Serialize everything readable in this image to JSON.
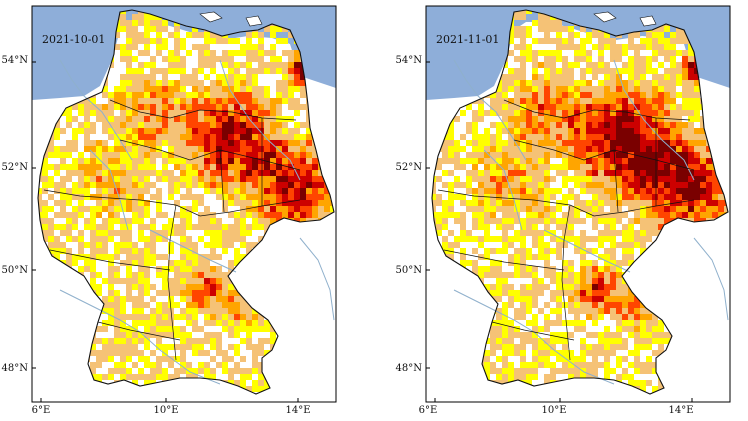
{
  "colors": {
    "sea": "#8eaed9",
    "land": "#ffffff",
    "border": "#111111",
    "river": "#8fb0cc",
    "frame": "#000000",
    "classes": [
      "#ffff00",
      "#f5c276",
      "#ffa500",
      "#ff4500",
      "#cc0000",
      "#7a0000"
    ]
  },
  "maps": [
    {
      "date": "2021-10-01",
      "lat_labels": [
        "54°N",
        "52°N",
        "50°N",
        "48°N"
      ],
      "lon_labels": [
        "6°E",
        "10°E",
        "14°E"
      ]
    },
    {
      "date": "2021-11-01",
      "lat_labels": [
        "54°N",
        "52°N",
        "50°N",
        "48°N"
      ],
      "lon_labels": [
        "6°E",
        "10°E",
        "14°E"
      ]
    }
  ]
}
